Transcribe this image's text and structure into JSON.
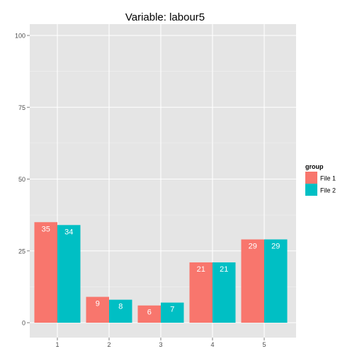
{
  "chart_data": {
    "type": "bar",
    "title": "Variable:  labour5",
    "xlabel": "",
    "ylabel": "",
    "categories": [
      "1",
      "2",
      "3",
      "4",
      "5"
    ],
    "ylim": [
      0,
      105
    ],
    "yticks": [
      0,
      25,
      50,
      75,
      100
    ],
    "grid": true,
    "legend": {
      "title": "group",
      "position": "right"
    },
    "series": [
      {
        "name": "File 1",
        "color": "#F8766D",
        "values": [
          35,
          9,
          6,
          21,
          29
        ]
      },
      {
        "name": "File 2",
        "color": "#00BFC4",
        "values": [
          34,
          8,
          7,
          21,
          29
        ]
      }
    ],
    "panel_background": "#E5E5E5",
    "grid_color": "#FFFFFF"
  }
}
